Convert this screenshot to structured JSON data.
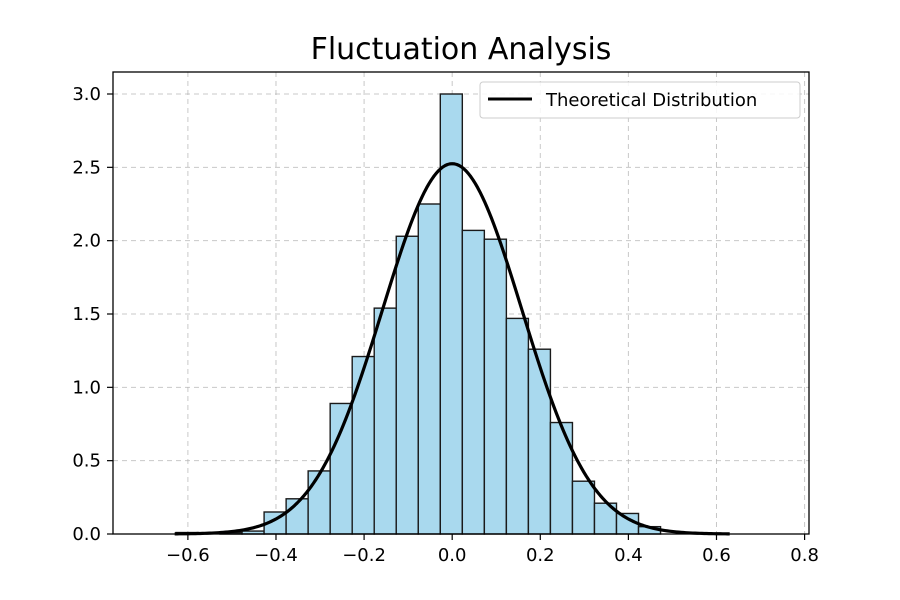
{
  "chart_data": {
    "type": "bar",
    "title": "Fluctuation Analysis",
    "xlabel": "",
    "ylabel": "",
    "xlim": [
      -0.77,
      0.81
    ],
    "ylim": [
      0,
      3.15
    ],
    "x_ticks": [
      -0.6,
      -0.4,
      -0.2,
      0.0,
      0.2,
      0.4,
      0.6,
      0.8
    ],
    "x_tick_labels": [
      "−0.6",
      "−0.4",
      "−0.2",
      "0.0",
      "0.2",
      "0.4",
      "0.6",
      "0.8"
    ],
    "y_ticks": [
      0.0,
      0.5,
      1.0,
      1.5,
      2.0,
      2.5,
      3.0
    ],
    "y_tick_labels": [
      "0.0",
      "0.5",
      "1.0",
      "1.5",
      "2.0",
      "2.5",
      "3.0"
    ],
    "grid": true,
    "legend_position": "top-right",
    "histogram": {
      "bin_edges": [
        -0.627,
        -0.577,
        -0.527,
        -0.477,
        -0.427,
        -0.377,
        -0.327,
        -0.277,
        -0.227,
        -0.177,
        -0.127,
        -0.077,
        -0.027,
        0.023,
        0.073,
        0.123,
        0.173,
        0.223,
        0.273,
        0.323,
        0.373,
        0.423,
        0.473
      ],
      "densities": [
        0.01,
        0.0,
        0.01,
        0.02,
        0.15,
        0.24,
        0.43,
        0.89,
        1.21,
        1.54,
        2.03,
        2.25,
        3.0,
        2.07,
        2.01,
        1.47,
        1.26,
        0.76,
        0.36,
        0.21,
        0.14,
        0.05
      ],
      "fill": "#a9d9ee",
      "edge": "#1a1a1a"
    },
    "series": [
      {
        "name": "Theoretical Distribution",
        "kind": "line",
        "color": "#000000",
        "distribution": "normal",
        "mean": 0.0,
        "std": 0.158,
        "x_range": [
          -0.63,
          0.63
        ]
      }
    ]
  }
}
